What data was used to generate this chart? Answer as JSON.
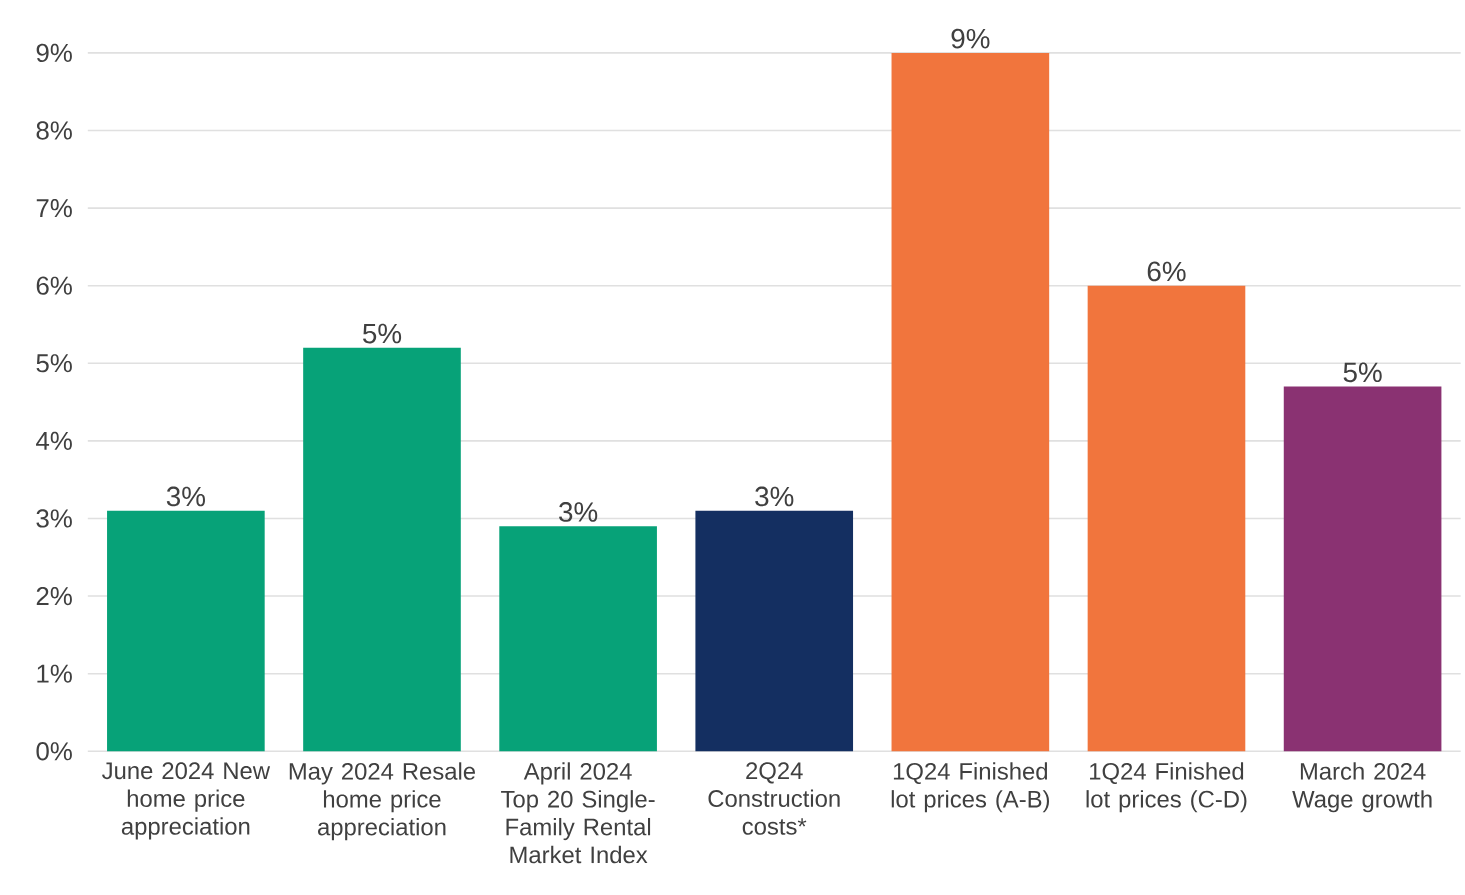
{
  "chart_data": {
    "type": "bar",
    "categories": [
      "June 2024 New home price appreciation",
      "May 2024 Resale home price appreciation",
      "April 2024 Top 20 Single-Family Rental Market Index",
      "2Q24 Construction costs*",
      "1Q24 Finished lot prices (A-B)",
      "1Q24 Finished lot prices (C-D)",
      "March 2024 Wage growth"
    ],
    "values": [
      3.1,
      5.2,
      2.9,
      3.1,
      9.0,
      6.0,
      4.7
    ],
    "value_labels": [
      "3%",
      "5%",
      "3%",
      "3%",
      "9%",
      "6%",
      "5%"
    ],
    "colors": [
      "#07a278",
      "#07a278",
      "#07a278",
      "#142f61",
      "#f1753d",
      "#f1753d",
      "#8a3272"
    ],
    "ylim": [
      0,
      9
    ],
    "yticks": [
      {
        "value": 0,
        "label": "0%"
      },
      {
        "value": 1,
        "label": "1%"
      },
      {
        "value": 2,
        "label": "2%"
      },
      {
        "value": 3,
        "label": "3%"
      },
      {
        "value": 4,
        "label": "4%"
      },
      {
        "value": 5,
        "label": "5%"
      },
      {
        "value": 6,
        "label": "6%"
      },
      {
        "value": 7,
        "label": "7%"
      },
      {
        "value": 8,
        "label": "8%"
      },
      {
        "value": 9,
        "label": "9%"
      }
    ],
    "grid": "y"
  }
}
